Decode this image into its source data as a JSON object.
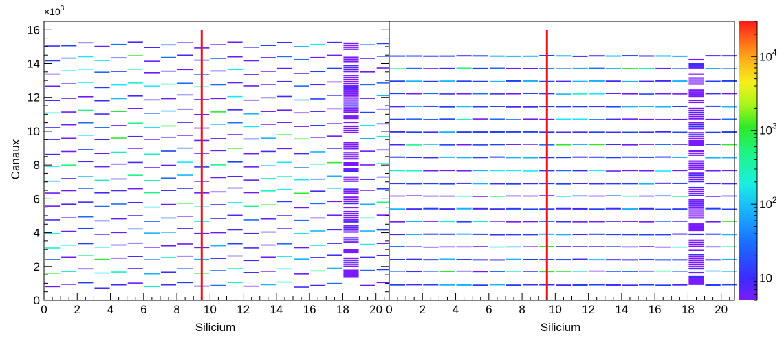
{
  "chart_data": {
    "type": "heatmap",
    "ylabel": "Canaux",
    "y_multiplier": "×10",
    "y_multiplier_exp": "3",
    "ylim": [
      0,
      16500
    ],
    "yticks": [
      "0",
      "2",
      "4",
      "6",
      "8",
      "10",
      "12",
      "14",
      "16"
    ],
    "color_scale": "log",
    "color_range": [
      5,
      30000
    ],
    "colorbar_ticks": [
      {
        "base": "10",
        "exp": "",
        "value": 10
      },
      {
        "base": "10",
        "exp": "2",
        "value": 100
      },
      {
        "base": "10",
        "exp": "3",
        "value": 1000
      },
      {
        "base": "10",
        "exp": "4",
        "value": 10000
      }
    ],
    "reference_line_x": 9.5,
    "reference_line_color": "#e8141b",
    "panels": [
      {
        "xlabel": "Silicium",
        "xlim": [
          0,
          20.8
        ],
        "xticks": [
          "0",
          "2",
          "4",
          "6",
          "8",
          "10",
          "12",
          "14",
          "16",
          "18",
          "20"
        ],
        "y_top": 16000,
        "line_spacing_pattern": "staggered",
        "base_channel_levels": [
          900,
          1700,
          2500,
          3250,
          4050,
          4850,
          5650,
          6450,
          7200,
          8000,
          8800,
          9600,
          10350,
          11150,
          11950,
          12750,
          13550,
          14300,
          15100
        ],
        "dense_column": {
          "x": [
            18,
            19
          ],
          "y_range": [
            1400,
            15200
          ],
          "count_level": 8
        }
      },
      {
        "xlabel": "Silicium",
        "xlim": [
          0,
          20.8
        ],
        "xticks": [
          "0",
          "2",
          "4",
          "6",
          "8",
          "10",
          "12",
          "14",
          "16",
          "18",
          "20"
        ],
        "y_top": 14500,
        "line_spacing_pattern": "aligned",
        "base_channel_levels": [
          900,
          1700,
          2400,
          3150,
          3900,
          4650,
          5400,
          6150,
          6900,
          7650,
          8450,
          9200,
          9950,
          10700,
          11450,
          12200,
          12950,
          13700,
          14450
        ],
        "dense_column": {
          "x": [
            18,
            19
          ],
          "y_range": [
            900,
            14300
          ],
          "count_level": 8
        }
      }
    ]
  }
}
